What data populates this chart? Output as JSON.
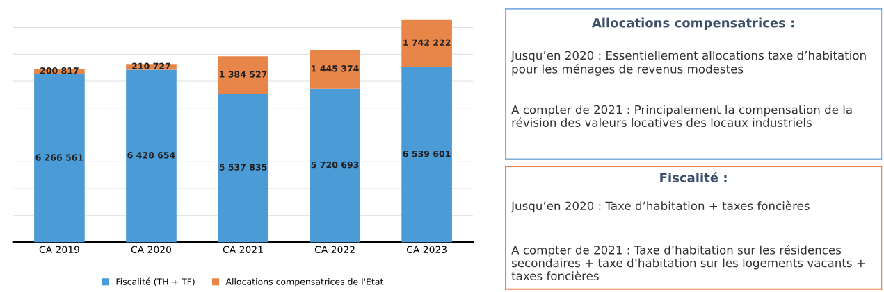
{
  "chart_data": [
    {
      "type": "bar",
      "stacked": true,
      "categories": [
        "CA 2019",
        "CA 2020",
        "CA 2021",
        "CA 2022",
        "CA 2023"
      ],
      "series": [
        {
          "name": "Fiscalité (TH + TF)",
          "color": "#4a9bd6",
          "values": [
            6266561,
            6428654,
            5537835,
            5720693,
            6539601
          ],
          "value_labels": [
            "6 266 561",
            "6 428 654",
            "5 537 835",
            "5 720 693",
            "6 539 601"
          ]
        },
        {
          "name": "Allocations compensatrices de l'Etat",
          "color": "#e8864a",
          "values": [
            200817,
            210727,
            1384527,
            1445374,
            1742222
          ],
          "value_labels": [
            "200 817",
            "210 727",
            "1 384 527",
            "1 445 374",
            "1 742 222"
          ]
        }
      ],
      "grid": "y",
      "legend": "bottom",
      "tick_labels": "x"
    },
    {
      "type": "other",
      "title": "Allocations compensatrices :",
      "annotations": [
        "Jusqu’en 2020 : Essentiellement allocations taxe d’habitation pour les ménages de revenus modestes",
        "A compter de 2021 : Principalement la compensation de la révision des valeurs locatives des locaux industriels"
      ]
    },
    {
      "type": "other",
      "title": "Fiscalité :",
      "annotations": [
        "Jusqu’en 2020 : Taxe d’habitation + taxes foncières",
        "A compter de 2021 : Taxe d’habitation sur les résidences secondaires + taxe d’habitation sur les logements vacants + taxes foncières"
      ]
    }
  ]
}
